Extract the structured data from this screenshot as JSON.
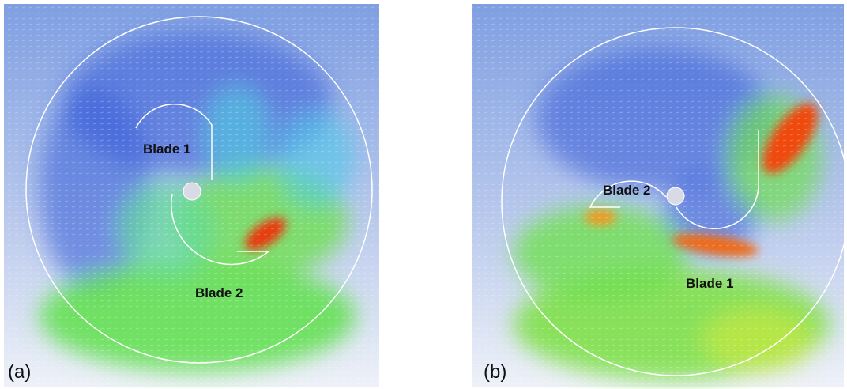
{
  "panels": [
    {
      "label": "(a)",
      "annotations": [
        "Blade 1",
        "Blade 2"
      ]
    },
    {
      "label": "(b)",
      "annotations": [
        "Blade 2",
        "Blade 1"
      ]
    }
  ]
}
